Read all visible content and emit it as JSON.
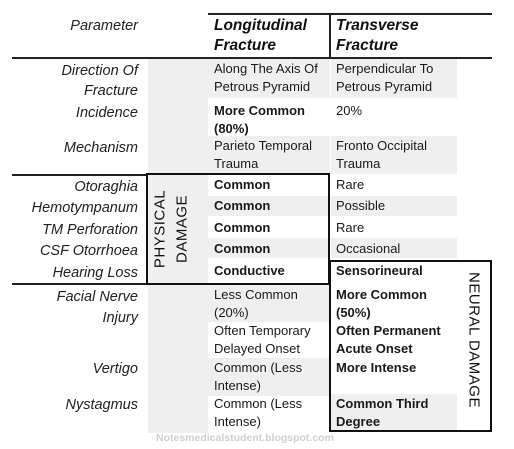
{
  "header": {
    "parameter": "Parameter",
    "longitudinal_l1": "Longitudinal",
    "longitudinal_l2": "Fracture",
    "transverse_l1": "Transverse",
    "transverse_l2": "Fracture"
  },
  "rows": {
    "direction": {
      "p1": "Direction Of",
      "p2": "Fracture",
      "l1": "Along The Axis Of",
      "l2": "Petrous Pyramid",
      "t1": "Perpendicular To",
      "t2": "Petrous Pyramid"
    },
    "incidence": {
      "p": "Incidence",
      "l1": "More Common",
      "l2": "(80%)",
      "t1": "20%"
    },
    "mechanism": {
      "p": "Mechanism",
      "l1": "Parieto Temporal",
      "l2": "Trauma",
      "t1": "Fronto Occipital",
      "t2": "Trauma"
    },
    "otoraghia": {
      "p": "Otoraghia",
      "l": "Common",
      "t": "Rare"
    },
    "hemotympanum": {
      "p": "Hemotympanum",
      "l": "Common",
      "t": "Possible"
    },
    "tm_perforation": {
      "p": "TM Perforation",
      "l": "Common",
      "t": "Rare"
    },
    "csf_otorrhoea": {
      "p": "CSF Otorrhoea",
      "l": "Common",
      "t": "Occasional"
    },
    "hearing_loss": {
      "p": "Hearing Loss",
      "l": "Conductive",
      "t": "Sensorineural"
    },
    "facial_nerve": {
      "p1": "Facial Nerve",
      "p2": "Injury",
      "l1": "Less Common",
      "l2": "(20%)",
      "t1": "More Common",
      "t2": "(50%)",
      "l3": "Often Temporary",
      "l4": "Delayed Onset",
      "t3": "Often Permanent",
      "t4": "Acute Onset"
    },
    "vertigo": {
      "p": "Vertigo",
      "l1": "Common (Less",
      "l2": "Intense)",
      "t1": "More Intense"
    },
    "nystagmus": {
      "p": "Nystagmus",
      "l1": "Common (Less",
      "l2": "Intense)",
      "t1": "Common Third",
      "t2": "Degree"
    }
  },
  "labels": {
    "physical_damage_l1": "PHYSICAL",
    "physical_damage_l2": "DAMAGE",
    "neural_damage": "NEURAL DAMAGE"
  },
  "watermark": "Notesmedicalstudent.blogspot.com"
}
